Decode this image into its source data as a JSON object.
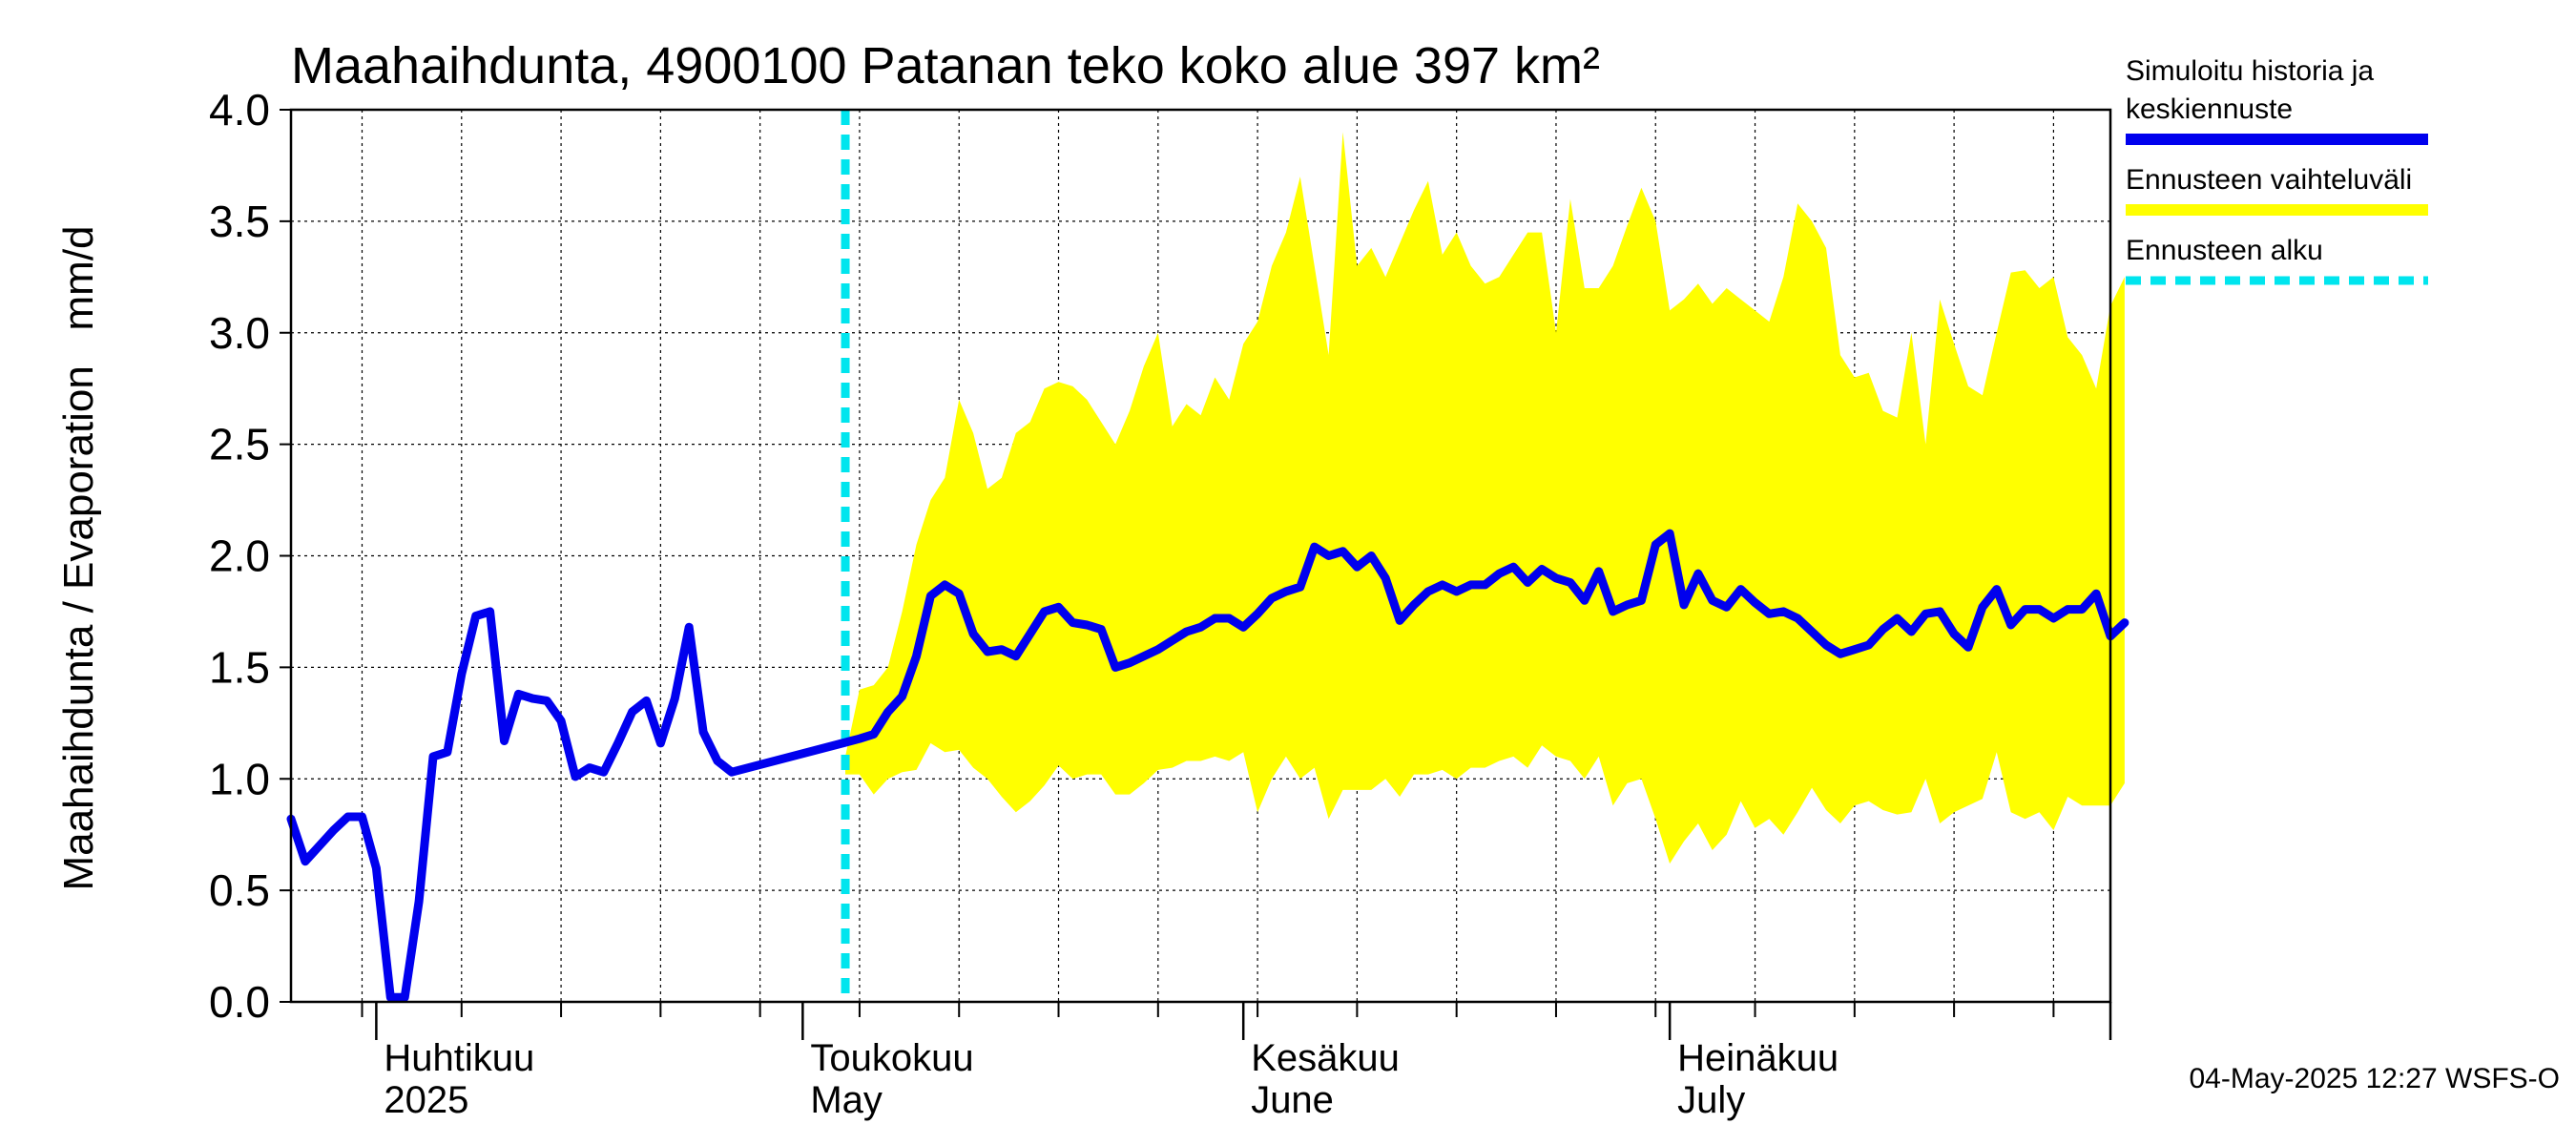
{
  "chart_data": {
    "type": "area",
    "title": "Maahaihdunta, 4900100 Patanan teko koko alue 397 km²",
    "ylabel": "Maahaihdunta / Evaporation   mm/d",
    "ylim": [
      0,
      4
    ],
    "yticks": [
      "0.0",
      "0.5",
      "1.0",
      "1.5",
      "2.0",
      "2.5",
      "3.0",
      "3.5",
      "4.0"
    ],
    "xlim": [
      "2025-03-26",
      "2025-08-01"
    ],
    "grid": true,
    "month_labels": [
      {
        "date": "2025-04-01",
        "fi": "Huhtikuu",
        "en": "2025"
      },
      {
        "date": "2025-05-01",
        "fi": "Toukokuu",
        "en": "May"
      },
      {
        "date": "2025-06-01",
        "fi": "Kesäkuu",
        "en": "June"
      },
      {
        "date": "2025-07-01",
        "fi": "Heinäkuu",
        "en": "July"
      }
    ],
    "forecast_start": "2025-05-04",
    "history": {
      "name": "Simuloitu historia ja keskiennuste",
      "color": "#0000ee",
      "start": "2025-03-26",
      "values": [
        0.82,
        0.63,
        0.7,
        0.77,
        0.83,
        0.83,
        0.6,
        0.02,
        0.02,
        0.45,
        1.1,
        1.12,
        1.47,
        1.73,
        1.75,
        1.17,
        1.38,
        1.36,
        1.35,
        1.26,
        1.01,
        1.05,
        1.03,
        1.16,
        1.3,
        1.35,
        1.16,
        1.36,
        1.68,
        1.21,
        1.08,
        1.03
      ]
    },
    "forecast_mean": {
      "start": "2025-05-04",
      "values": [
        1.03,
        1.18,
        1.2,
        1.3,
        1.37,
        1.55,
        1.82,
        1.87,
        1.83,
        1.65,
        1.57,
        1.58,
        1.55,
        1.65,
        1.75,
        1.77,
        1.7,
        1.69,
        1.67,
        1.5,
        1.52,
        1.55,
        1.58,
        1.62,
        1.66,
        1.68,
        1.72,
        1.72,
        1.68,
        1.74,
        1.81,
        1.84,
        1.86,
        2.04,
        2.0,
        2.02,
        1.95,
        2.0,
        1.9,
        1.71,
        1.78,
        1.84,
        1.87,
        1.84,
        1.87,
        1.87,
        1.92,
        1.95,
        1.88,
        1.94,
        1.9,
        1.88,
        1.8,
        1.93,
        1.75,
        1.78,
        1.8,
        2.05,
        2.1,
        1.78,
        1.92,
        1.8,
        1.77,
        1.85,
        1.79,
        1.74,
        1.75,
        1.72,
        1.66,
        1.6,
        1.56,
        1.58,
        1.6,
        1.67,
        1.72,
        1.66,
        1.74,
        1.75,
        1.65,
        1.59,
        1.77,
        1.85,
        1.69,
        1.76,
        1.76,
        1.72,
        1.76,
        1.76,
        1.83,
        1.64,
        1.7
      ]
    },
    "forecast_range": {
      "name": "Ennusteen vaihteluväli",
      "color": "#ffff00",
      "start": "2025-05-04",
      "upper": [
        1.1,
        1.4,
        1.42,
        1.5,
        1.75,
        2.05,
        2.25,
        2.35,
        2.7,
        2.55,
        2.3,
        2.35,
        2.55,
        2.6,
        2.75,
        2.78,
        2.76,
        2.7,
        2.6,
        2.5,
        2.65,
        2.85,
        3.0,
        2.58,
        2.68,
        2.63,
        2.8,
        2.7,
        2.95,
        3.05,
        3.3,
        3.45,
        3.7,
        3.3,
        2.9,
        3.9,
        3.3,
        3.38,
        3.25,
        3.4,
        3.55,
        3.68,
        3.35,
        3.45,
        3.3,
        3.22,
        3.25,
        3.35,
        3.45,
        3.45,
        3.0,
        3.6,
        3.2,
        3.2,
        3.3,
        3.48,
        3.65,
        3.5,
        3.1,
        3.15,
        3.22,
        3.13,
        3.2,
        3.15,
        3.1,
        3.05,
        3.25,
        3.58,
        3.5,
        3.38,
        2.9,
        2.8,
        2.82,
        2.65,
        2.62,
        3.0,
        2.5,
        3.15,
        2.95,
        2.76,
        2.72,
        3.0,
        3.27,
        3.28,
        3.2,
        3.25,
        2.98,
        2.9,
        2.75,
        3.12,
        3.25
      ],
      "lower": [
        1.02,
        1.02,
        0.93,
        1.0,
        1.03,
        1.04,
        1.16,
        1.12,
        1.13,
        1.05,
        1.0,
        0.92,
        0.85,
        0.9,
        0.97,
        1.06,
        1.0,
        1.02,
        1.02,
        0.93,
        0.93,
        0.98,
        1.04,
        1.05,
        1.08,
        1.08,
        1.1,
        1.08,
        1.12,
        0.85,
        1.0,
        1.1,
        1.0,
        1.05,
        0.82,
        0.95,
        0.95,
        0.95,
        1.0,
        0.92,
        1.02,
        1.02,
        1.04,
        1.0,
        1.05,
        1.05,
        1.08,
        1.1,
        1.05,
        1.15,
        1.1,
        1.08,
        1.0,
        1.1,
        0.88,
        0.98,
        1.0,
        0.82,
        0.62,
        0.72,
        0.8,
        0.68,
        0.75,
        0.9,
        0.78,
        0.82,
        0.75,
        0.85,
        0.96,
        0.86,
        0.8,
        0.88,
        0.9,
        0.86,
        0.84,
        0.85,
        1.0,
        0.8,
        0.85,
        0.88,
        0.91,
        1.12,
        0.85,
        0.82,
        0.85,
        0.77,
        0.92,
        0.88,
        0.88,
        0.88,
        0.98
      ]
    },
    "legend": {
      "position": "right",
      "items": [
        {
          "label_lines": [
            "Simuloitu historia ja",
            "keskiennuste"
          ],
          "color": "#0000ee",
          "style": "solid"
        },
        {
          "label_lines": [
            "Ennusteen vaihteluväli"
          ],
          "color": "#ffff00",
          "style": "solid"
        },
        {
          "label_lines": [
            "Ennusteen alku"
          ],
          "color": "#00e5ee",
          "style": "dashed"
        }
      ]
    },
    "timestamp": "04-May-2025 12:27 WSFS-O"
  }
}
